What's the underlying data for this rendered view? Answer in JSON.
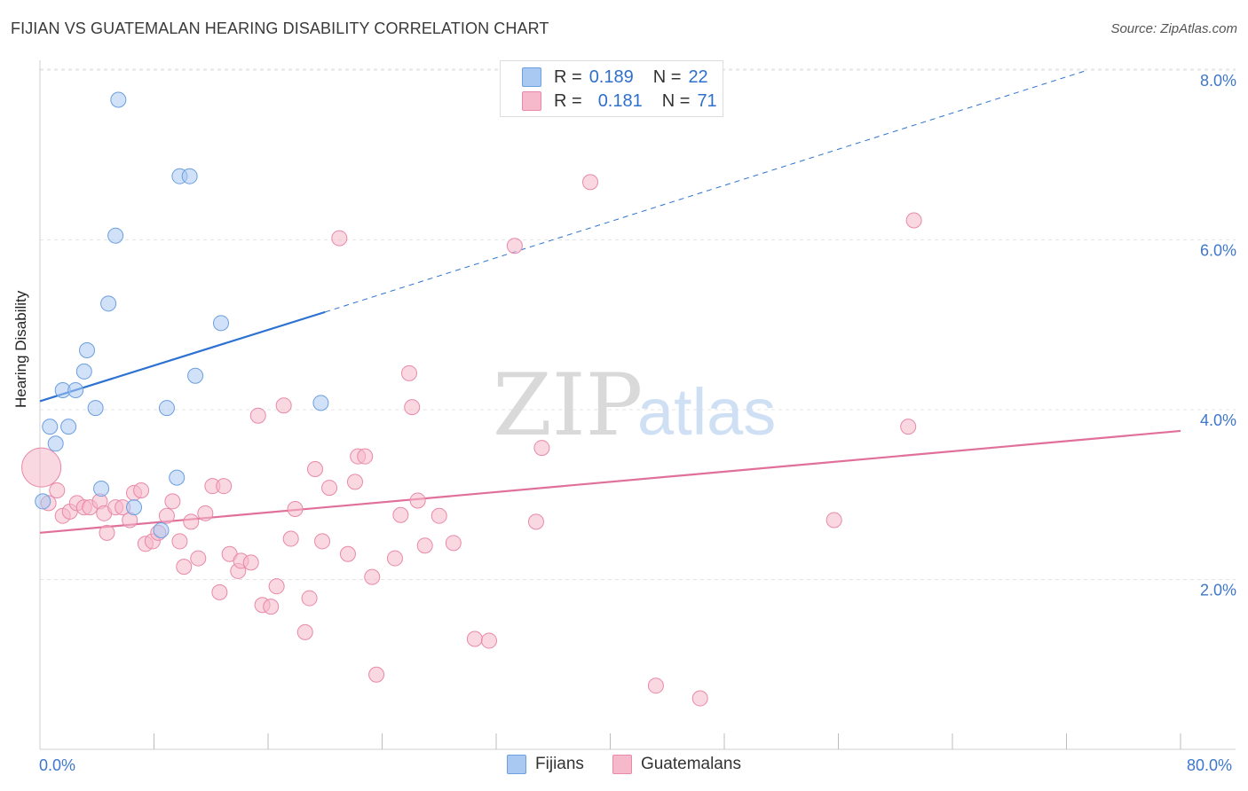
{
  "header": {
    "title": "FIJIAN VS GUATEMALAN HEARING DISABILITY CORRELATION CHART",
    "source": "Source: ZipAtlas.com"
  },
  "watermark": {
    "zip": "ZIP",
    "atlas": "atlas"
  },
  "legend_top": {
    "rows": [
      {
        "r_label": "R =",
        "r_value": "0.189",
        "n_label": "N =",
        "n_value": "22",
        "color": "#a9c8f2"
      },
      {
        "r_label": "R =",
        "r_value": "0.181",
        "n_label": "N =",
        "n_value": "71",
        "color": "#f6b8cb"
      }
    ]
  },
  "legend_bottom": {
    "items": [
      {
        "label": "Fijians",
        "color": "#a9c8f2"
      },
      {
        "label": "Guatemalans",
        "color": "#f6b8cb"
      }
    ]
  },
  "axes": {
    "ylabel": "Hearing Disability",
    "x_min_label": "0.0%",
    "x_max_label": "80.0%",
    "y_ticks": [
      "2.0%",
      "4.0%",
      "6.0%",
      "8.0%"
    ]
  },
  "chart_data": {
    "type": "scatter",
    "title": "FIJIAN VS GUATEMALAN HEARING DISABILITY CORRELATION CHART",
    "xlabel": "",
    "ylabel": "Hearing Disability",
    "xlim": [
      0,
      80
    ],
    "ylim": [
      0,
      8.5
    ],
    "y_ticks": [
      2,
      4,
      6,
      8
    ],
    "grid": true,
    "legend_position": "top-center",
    "series": [
      {
        "name": "Fijians",
        "color": "#a9c8f2",
        "stroke": "#6b9fe0",
        "trend_color": "#2d72d2",
        "trend": {
          "x0": 0,
          "y0": 4.1,
          "x1": 20,
          "y1": 5.15,
          "dash_to_x": 73.5,
          "dash_to_y": 8.0
        },
        "points": [
          {
            "x": 5.5,
            "y": 7.65
          },
          {
            "x": 9.8,
            "y": 6.75
          },
          {
            "x": 10.5,
            "y": 6.75
          },
          {
            "x": 5.3,
            "y": 6.05
          },
          {
            "x": 4.8,
            "y": 5.25
          },
          {
            "x": 12.7,
            "y": 5.02
          },
          {
            "x": 3.3,
            "y": 4.7
          },
          {
            "x": 3.1,
            "y": 4.45
          },
          {
            "x": 10.9,
            "y": 4.4
          },
          {
            "x": 1.6,
            "y": 4.23
          },
          {
            "x": 2.5,
            "y": 4.23
          },
          {
            "x": 3.9,
            "y": 4.02
          },
          {
            "x": 8.9,
            "y": 4.02
          },
          {
            "x": 19.7,
            "y": 4.08
          },
          {
            "x": 0.7,
            "y": 3.8
          },
          {
            "x": 2.0,
            "y": 3.8
          },
          {
            "x": 1.1,
            "y": 3.6
          },
          {
            "x": 9.6,
            "y": 3.2
          },
          {
            "x": 4.3,
            "y": 3.07
          },
          {
            "x": 0.2,
            "y": 2.92
          },
          {
            "x": 6.6,
            "y": 2.85
          },
          {
            "x": 8.5,
            "y": 2.58
          }
        ]
      },
      {
        "name": "Guatemalans",
        "color": "#f6b8cb",
        "stroke": "#e889a8",
        "trend_color": "#e0709a",
        "trend": {
          "x0": 0,
          "y0": 2.55,
          "x1": 80,
          "y1": 3.75
        },
        "points": [
          {
            "x": 0.1,
            "y": 3.32,
            "big": true
          },
          {
            "x": 0.6,
            "y": 2.9
          },
          {
            "x": 1.2,
            "y": 3.05
          },
          {
            "x": 1.6,
            "y": 2.75
          },
          {
            "x": 2.1,
            "y": 2.8
          },
          {
            "x": 2.6,
            "y": 2.9
          },
          {
            "x": 3.1,
            "y": 2.85
          },
          {
            "x": 3.5,
            "y": 2.85
          },
          {
            "x": 4.2,
            "y": 2.92
          },
          {
            "x": 4.5,
            "y": 2.78
          },
          {
            "x": 4.7,
            "y": 2.55
          },
          {
            "x": 5.3,
            "y": 2.85
          },
          {
            "x": 5.8,
            "y": 2.85
          },
          {
            "x": 6.3,
            "y": 2.7
          },
          {
            "x": 6.6,
            "y": 3.02
          },
          {
            "x": 7.1,
            "y": 3.05
          },
          {
            "x": 7.4,
            "y": 2.42
          },
          {
            "x": 7.9,
            "y": 2.45
          },
          {
            "x": 8.3,
            "y": 2.55
          },
          {
            "x": 8.9,
            "y": 2.75
          },
          {
            "x": 9.3,
            "y": 2.92
          },
          {
            "x": 9.8,
            "y": 2.45
          },
          {
            "x": 10.1,
            "y": 2.15
          },
          {
            "x": 10.6,
            "y": 2.68
          },
          {
            "x": 11.1,
            "y": 2.25
          },
          {
            "x": 11.6,
            "y": 2.78
          },
          {
            "x": 12.1,
            "y": 3.1
          },
          {
            "x": 12.6,
            "y": 1.85
          },
          {
            "x": 12.9,
            "y": 3.1
          },
          {
            "x": 13.3,
            "y": 2.3
          },
          {
            "x": 13.9,
            "y": 2.1
          },
          {
            "x": 14.1,
            "y": 2.22
          },
          {
            "x": 14.8,
            "y": 2.2
          },
          {
            "x": 15.3,
            "y": 3.93
          },
          {
            "x": 15.6,
            "y": 1.7
          },
          {
            "x": 16.2,
            "y": 1.68
          },
          {
            "x": 16.6,
            "y": 1.92
          },
          {
            "x": 17.1,
            "y": 4.05
          },
          {
            "x": 17.6,
            "y": 2.48
          },
          {
            "x": 17.9,
            "y": 2.83
          },
          {
            "x": 18.6,
            "y": 1.38
          },
          {
            "x": 18.9,
            "y": 1.78
          },
          {
            "x": 19.3,
            "y": 3.3
          },
          {
            "x": 19.8,
            "y": 2.45
          },
          {
            "x": 20.3,
            "y": 3.08
          },
          {
            "x": 21.0,
            "y": 6.02
          },
          {
            "x": 21.6,
            "y": 2.3
          },
          {
            "x": 22.1,
            "y": 3.15
          },
          {
            "x": 22.3,
            "y": 3.45
          },
          {
            "x": 22.8,
            "y": 3.45
          },
          {
            "x": 23.3,
            "y": 2.03
          },
          {
            "x": 23.6,
            "y": 0.88
          },
          {
            "x": 24.9,
            "y": 2.25
          },
          {
            "x": 25.3,
            "y": 2.76
          },
          {
            "x": 25.9,
            "y": 4.43
          },
          {
            "x": 26.1,
            "y": 4.03
          },
          {
            "x": 26.5,
            "y": 2.93
          },
          {
            "x": 27.0,
            "y": 2.4
          },
          {
            "x": 28.0,
            "y": 2.75
          },
          {
            "x": 29.0,
            "y": 2.43
          },
          {
            "x": 30.5,
            "y": 1.3
          },
          {
            "x": 31.5,
            "y": 1.28
          },
          {
            "x": 33.3,
            "y": 5.93
          },
          {
            "x": 34.8,
            "y": 2.68
          },
          {
            "x": 35.2,
            "y": 3.55
          },
          {
            "x": 38.6,
            "y": 6.68
          },
          {
            "x": 43.2,
            "y": 0.75
          },
          {
            "x": 46.3,
            "y": 0.6
          },
          {
            "x": 55.7,
            "y": 2.7
          },
          {
            "x": 60.9,
            "y": 3.8
          },
          {
            "x": 61.3,
            "y": 6.23
          }
        ]
      }
    ]
  }
}
